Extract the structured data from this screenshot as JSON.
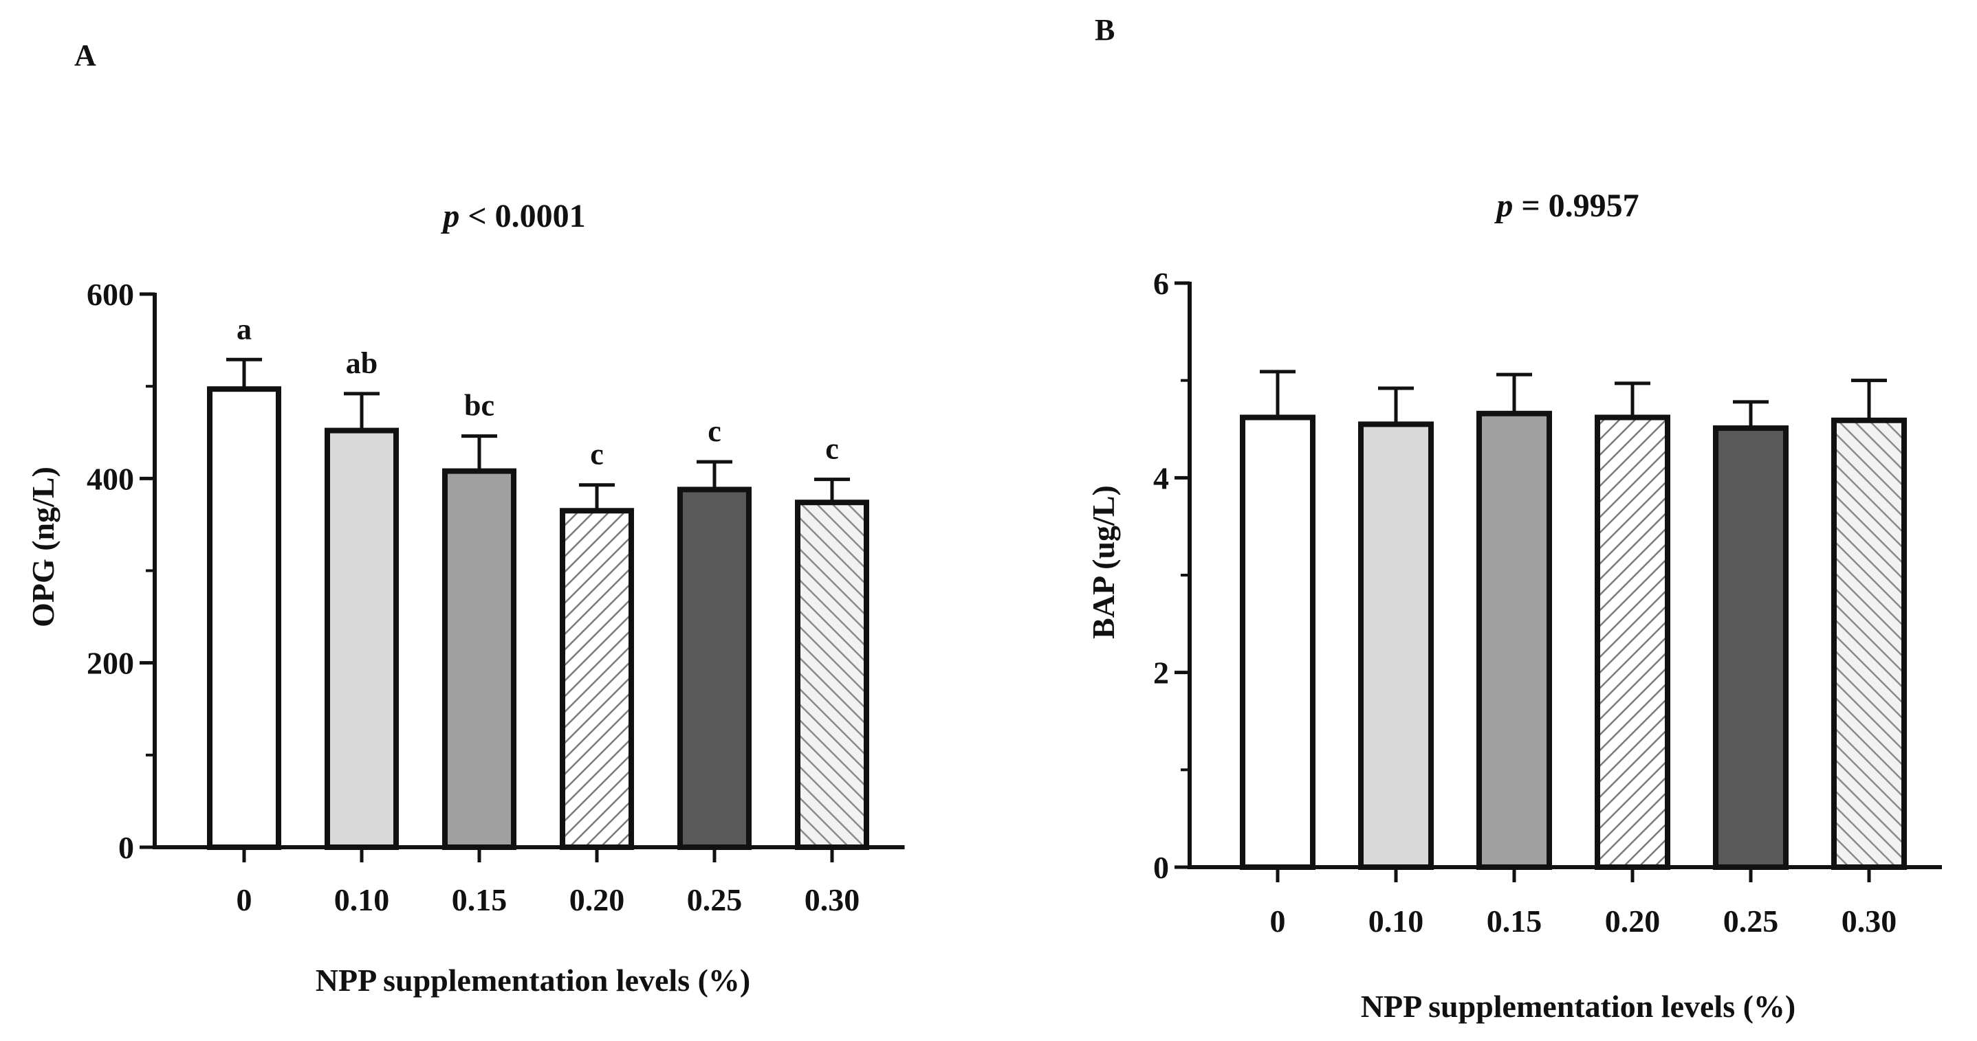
{
  "chart_data": [
    {
      "panel": "A",
      "type": "bar",
      "title_italic": "p",
      "title_rest": " < 0.0001",
      "xlabel": "NPP supplementation levels  (%)",
      "ylabel": "OPG (ng/L)",
      "ylim": [
        0,
        600
      ],
      "yticks": [
        0,
        200,
        400,
        600
      ],
      "categories": [
        "0",
        "0.10",
        "0.15",
        "0.20",
        "0.25",
        "0.30"
      ],
      "values": [
        497,
        452,
        408,
        365,
        388,
        374
      ],
      "errors": [
        32,
        40,
        38,
        28,
        30,
        25
      ],
      "letters": [
        "a",
        "ab",
        "bc",
        "c",
        "c",
        "c"
      ]
    },
    {
      "panel": "B",
      "type": "bar",
      "title_italic": "p",
      "title_rest": " = 0.9957",
      "xlabel": "NPP supplementation levels  (%)",
      "ylabel": "BAP (ug/L)",
      "ylim": [
        0,
        6
      ],
      "yticks": [
        0,
        2,
        4,
        6
      ],
      "categories": [
        "0",
        "0.10",
        "0.15",
        "0.20",
        "0.25",
        "0.30"
      ],
      "values": [
        4.62,
        4.55,
        4.66,
        4.62,
        4.51,
        4.59
      ],
      "errors": [
        0.47,
        0.37,
        0.4,
        0.35,
        0.27,
        0.41
      ],
      "letters": []
    }
  ],
  "series_styles": [
    {
      "fill": "#ffffff",
      "pattern": "none"
    },
    {
      "fill": "#d9d9d9",
      "pattern": "none"
    },
    {
      "fill": "#a0a0a0",
      "pattern": "none"
    },
    {
      "fill": "#ffffff",
      "pattern": "diag-up"
    },
    {
      "fill": "#595959",
      "pattern": "none"
    },
    {
      "fill": "#ffffff",
      "pattern": "diag-down"
    }
  ],
  "colors": {
    "ink": "#111111",
    "hatch_up": "#7a7a7a",
    "hatch_down": "#8a8a8a"
  }
}
